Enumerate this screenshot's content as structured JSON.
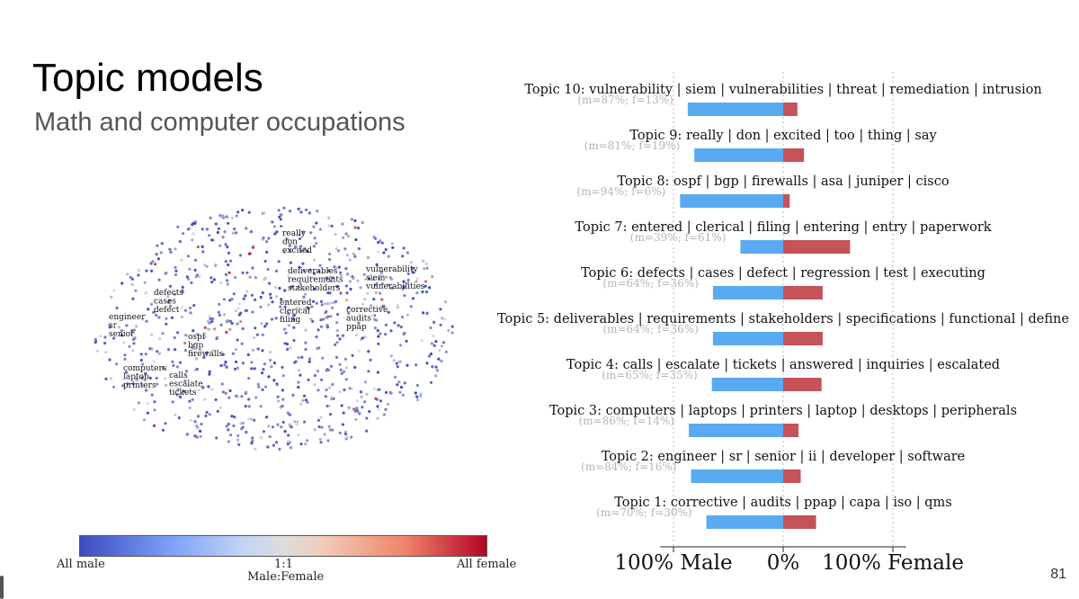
{
  "slide": {
    "title": "Topic models",
    "subtitle": "Math and computer occupations",
    "page_number": "81"
  },
  "colors": {
    "male": "#5aaaf2",
    "female": "#c4535a",
    "scatter_cool": "#3b4cc0",
    "scatter_neutral": "#dddddd",
    "scatter_warm": "#b40426"
  },
  "colorbar": {
    "left_label": "All male",
    "center_label": "1:1",
    "right_label": "All female",
    "title": "Male:Female"
  },
  "scatter_labels": [
    {
      "lines": [
        "really",
        "don",
        "excited"
      ]
    },
    {
      "lines": [
        "deliverables",
        "requirements",
        "stakeholders"
      ]
    },
    {
      "lines": [
        "vulnerability",
        "siem",
        "vulnerabilities"
      ]
    },
    {
      "lines": [
        "defects",
        "cases",
        "defect"
      ]
    },
    {
      "lines": [
        "engineer",
        "sr",
        "senior"
      ]
    },
    {
      "lines": [
        "entered",
        "clerical",
        "filing"
      ]
    },
    {
      "lines": [
        "corrective",
        "audits",
        "ppap"
      ]
    },
    {
      "lines": [
        "ospf",
        "bgp",
        "firewalls"
      ]
    },
    {
      "lines": [
        "computers",
        "laptop",
        "printers"
      ]
    },
    {
      "lines": [
        "calls",
        "escalate",
        "tickets"
      ]
    }
  ],
  "chart_data": [
    {
      "type": "scatter",
      "description_note": "t-SNE style embedding of documents colored by male:female ratio",
      "colormap": "coolwarm",
      "colormap_range": [
        "All male",
        "All female"
      ],
      "colorbar_title": "Male:Female"
    },
    {
      "type": "bar",
      "orientation": "horizontal-diverging",
      "xlim": [
        -100,
        100
      ],
      "x_tick_labels": [
        "100% Male",
        "0%",
        "100% Female"
      ],
      "x_ticks": [
        -100,
        0,
        100
      ],
      "grid": "vertical dotted",
      "topics": [
        {
          "title": "Topic 10: vulnerability | siem | vulnerabilities | threat | remediation | intrusion",
          "label": "(m=87%; f=13%)",
          "male": 87,
          "female": 13
        },
        {
          "title": "Topic 9: really | don | excited | too | thing | say",
          "label": "(m=81%; f=19%)",
          "male": 81,
          "female": 19
        },
        {
          "title": "Topic 8: ospf | bgp | firewalls | asa | juniper | cisco",
          "label": "(m=94%; f=6%)",
          "male": 94,
          "female": 6
        },
        {
          "title": "Topic 7: entered | clerical | filing | entering | entry | paperwork",
          "label": "(m=39%; f=61%)",
          "male": 39,
          "female": 61
        },
        {
          "title": "Topic 6: defects | cases | defect | regression | test | executing",
          "label": "(m=64%; f=36%)",
          "male": 64,
          "female": 36
        },
        {
          "title": "Topic 5: deliverables | requirements | stakeholders | specifications | functional | define",
          "label": "(m=64%; f=36%)",
          "male": 64,
          "female": 36
        },
        {
          "title": "Topic 4: calls | escalate | tickets | answered | inquiries | escalated",
          "label": "(m=65%; f=35%)",
          "male": 65,
          "female": 35
        },
        {
          "title": "Topic 3: computers | laptops | printers | laptop | desktops | peripherals",
          "label": "(m=86%; f=14%)",
          "male": 86,
          "female": 14
        },
        {
          "title": "Topic 2: engineer | sr | senior | ii | developer | software",
          "label": "(m=84%; f=16%)",
          "male": 84,
          "female": 16
        },
        {
          "title": "Topic 1: corrective | audits | ppap | capa | iso | qms",
          "label": "(m=70%; f=30%)",
          "male": 70,
          "female": 30
        }
      ]
    }
  ]
}
